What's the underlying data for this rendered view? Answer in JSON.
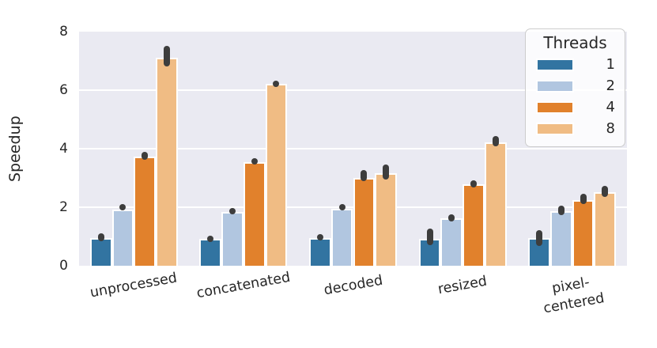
{
  "chart_data": {
    "type": "bar",
    "title": "",
    "ylabel": "Speedup",
    "xlabel": "",
    "ylim": [
      0,
      8
    ],
    "yticks": [
      0,
      2,
      4,
      6,
      8
    ],
    "grid": true,
    "plot_background": "#eaeaf2",
    "gridline_color": "#ffffff",
    "errorbar_color": "#3d3d3d",
    "categories": [
      "unprocessed",
      "concatenated",
      "decoded",
      "resized",
      "pixel-\ncentered"
    ],
    "legend": {
      "title": "Threads",
      "position": "upper right"
    },
    "series": [
      {
        "name": "1",
        "color": "#3274a1",
        "values": [
          0.95,
          0.93,
          0.95,
          0.92,
          0.95
        ],
        "errors": [
          [
            0.85,
            1.1
          ],
          [
            0.86,
            1.03
          ],
          [
            0.88,
            1.08
          ],
          [
            0.7,
            1.26
          ],
          [
            0.68,
            1.22
          ]
        ]
      },
      {
        "name": "2",
        "color": "#b1c6e0",
        "values": [
          1.92,
          1.83,
          1.95,
          1.62,
          1.87
        ],
        "errors": [
          [
            1.88,
            2.1
          ],
          [
            1.8,
            1.98
          ],
          [
            1.92,
            2.1
          ],
          [
            1.52,
            1.77
          ],
          [
            1.72,
            2.05
          ]
        ]
      },
      {
        "name": "4",
        "color": "#e1812c",
        "values": [
          3.73,
          3.54,
          3.0,
          2.78,
          2.25
        ],
        "errors": [
          [
            3.62,
            3.9
          ],
          [
            3.45,
            3.67
          ],
          [
            2.9,
            3.27
          ],
          [
            2.67,
            2.91
          ],
          [
            2.1,
            2.45
          ]
        ]
      },
      {
        "name": "8",
        "color": "#f0bc84",
        "values": [
          7.1,
          6.22,
          3.16,
          4.22,
          2.52
        ],
        "errors": [
          [
            6.82,
            7.52
          ],
          [
            6.13,
            6.33
          ],
          [
            2.95,
            3.45
          ],
          [
            4.08,
            4.42
          ],
          [
            2.35,
            2.73
          ]
        ]
      }
    ]
  }
}
